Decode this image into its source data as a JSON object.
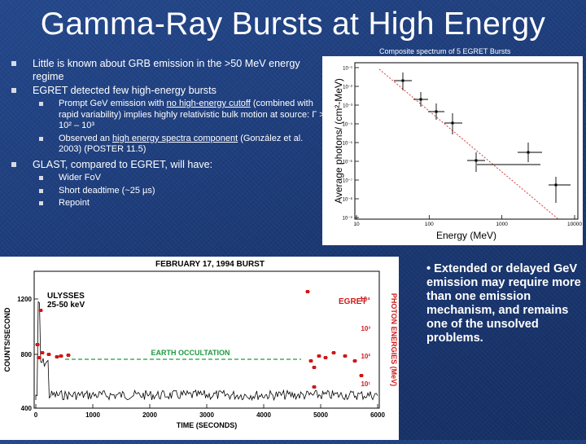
{
  "title": "Gamma-Ray Bursts at High Energy",
  "spectrum_caption": "Composite spectrum of 5 EGRET Bursts",
  "bullets": {
    "b1": "Little is known about GRB emission in the >50 MeV energy regime",
    "b2": "EGRET detected few high-energy bursts",
    "b2a_pre": "Prompt GeV emission with ",
    "b2a_link": "no high-energy cutoff",
    "b2a_post": " (combined with rapid variability) implies highly relativistic bulk motion at source: ",
    "b2a_gamma": "Γ",
    "b2a_range": " > 10² – 10³",
    "b2b_pre": "Observed an ",
    "b2b_link": "high energy spectra component",
    "b2b_post": " (González et al. 2003) (POSTER 11.5)",
    "b3": "GLAST, compared to EGRET, will have:",
    "b3a": "Wider FoV",
    "b3b": "Short deadtime (~25 µs)",
    "b3c": "Repoint"
  },
  "side_note": "• Extended or delayed GeV emission may require more than one emission mechanism, and remains one of the unsolved problems.",
  "spectrum_plot": {
    "ylabel": "Average photons/ (cm²-MeV)",
    "xlabel": "Energy (MeV)",
    "x_ticks": [
      "10",
      "100",
      "1000",
      "10000"
    ],
    "y_ticks": [
      "10⁻¹",
      "10⁻²",
      "10⁻³",
      "10⁻⁴",
      "10⁻⁵",
      "10⁻⁶",
      "10⁻⁷",
      "10⁻⁸",
      "10⁻⁹"
    ],
    "fit_color": "#d93b3b"
  },
  "burst_plot": {
    "title": "FEBRUARY 17, 1994 BURST",
    "instrument": "ULYSSES",
    "band": "25-50 keV",
    "egret": "EGRET",
    "occultation": "EARTH OCCULTATION",
    "ylabel": "COUNTS/SECOND",
    "xlabel": "TIME (SECONDS)",
    "right_label": "PHOTON ENERGIES (MeV)",
    "y_ticks": [
      "1200",
      "800",
      "400"
    ],
    "x_ticks": [
      "0",
      "1000",
      "2000",
      "3000",
      "4000",
      "5000",
      "6000"
    ],
    "right_ticks": [
      "10⁴",
      "10³",
      "10²",
      "10¹"
    ],
    "accent": "#d01818",
    "occ_color": "#1e9a40"
  }
}
